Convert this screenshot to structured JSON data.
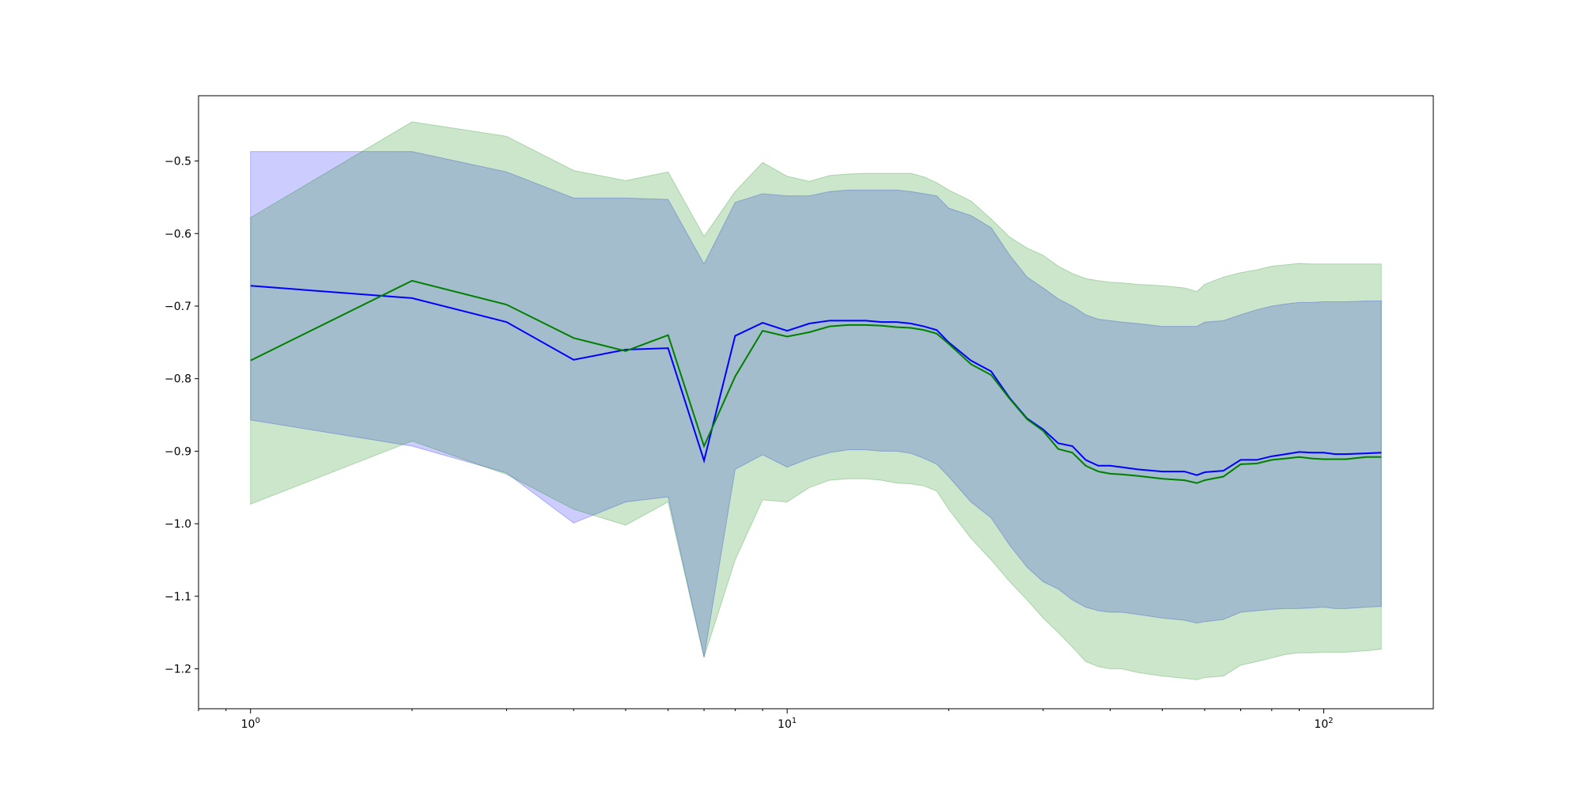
{
  "chart_data": {
    "type": "line",
    "xscale": "log",
    "grid": false,
    "title": "",
    "xlabel": "",
    "ylabel": "",
    "xlim": [
      0.8,
      160
    ],
    "ylim": [
      -1.255,
      -0.41
    ],
    "y_ticks": [
      -0.5,
      -0.6,
      -0.7,
      -0.8,
      -0.9,
      -1.0,
      -1.1,
      -1.2
    ],
    "y_tick_labels": [
      "−0.5",
      "−0.6",
      "−0.7",
      "−0.8",
      "−0.9",
      "−1.0",
      "−1.1",
      "−1.2"
    ],
    "x_major_ticks": [
      1,
      10,
      100
    ],
    "x_tick_labels": [
      {
        "base": "10",
        "exp": "0"
      },
      {
        "base": "10",
        "exp": "1"
      },
      {
        "base": "10",
        "exp": "2"
      }
    ],
    "series": [
      {
        "color": "#0000ff",
        "band_color": "#0000ff",
        "band_opacity": 0.2,
        "x": [
          1,
          2,
          3,
          4,
          5,
          6,
          7,
          8,
          9,
          10,
          11,
          12,
          13,
          14,
          15,
          16,
          17,
          18,
          19,
          20,
          22,
          24,
          26,
          28,
          30,
          32,
          34,
          36,
          38,
          40,
          42,
          45,
          50,
          55,
          58,
          60,
          65,
          70,
          75,
          80,
          85,
          90,
          95,
          100,
          105,
          110,
          120,
          128
        ],
        "y": [
          -0.672,
          -0.689,
          -0.722,
          -0.774,
          -0.76,
          -0.758,
          -0.913,
          -0.741,
          -0.723,
          -0.734,
          -0.724,
          -0.72,
          -0.72,
          -0.72,
          -0.722,
          -0.722,
          -0.724,
          -0.728,
          -0.733,
          -0.75,
          -0.775,
          -0.79,
          -0.827,
          -0.855,
          -0.87,
          -0.889,
          -0.893,
          -0.912,
          -0.92,
          -0.92,
          -0.922,
          -0.925,
          -0.928,
          -0.928,
          -0.933,
          -0.929,
          -0.927,
          -0.912,
          -0.912,
          -0.907,
          -0.904,
          -0.901,
          -0.902,
          -0.902,
          -0.904,
          -0.904,
          -0.903,
          -0.902
        ],
        "upper": [
          -0.487,
          -0.487,
          -0.515,
          -0.551,
          -0.551,
          -0.553,
          -0.642,
          -0.557,
          -0.545,
          -0.548,
          -0.548,
          -0.542,
          -0.54,
          -0.54,
          -0.54,
          -0.54,
          -0.542,
          -0.545,
          -0.548,
          -0.565,
          -0.575,
          -0.592,
          -0.63,
          -0.66,
          -0.675,
          -0.69,
          -0.7,
          -0.712,
          -0.718,
          -0.72,
          -0.722,
          -0.724,
          -0.728,
          -0.728,
          -0.728,
          -0.722,
          -0.72,
          -0.712,
          -0.705,
          -0.7,
          -0.697,
          -0.695,
          -0.695,
          -0.694,
          -0.694,
          -0.694,
          -0.693,
          -0.693
        ],
        "lower": [
          -0.857,
          -0.893,
          -0.93,
          -0.999,
          -0.97,
          -0.963,
          -1.184,
          -0.925,
          -0.905,
          -0.922,
          -0.91,
          -0.902,
          -0.898,
          -0.898,
          -0.9,
          -0.9,
          -0.903,
          -0.91,
          -0.918,
          -0.935,
          -0.97,
          -0.992,
          -1.03,
          -1.06,
          -1.08,
          -1.09,
          -1.105,
          -1.115,
          -1.12,
          -1.122,
          -1.122,
          -1.125,
          -1.13,
          -1.133,
          -1.137,
          -1.135,
          -1.132,
          -1.122,
          -1.12,
          -1.118,
          -1.117,
          -1.117,
          -1.116,
          -1.115,
          -1.117,
          -1.117,
          -1.115,
          -1.114
        ]
      },
      {
        "color": "#008000",
        "band_color": "#008000",
        "band_opacity": 0.2,
        "x": [
          1,
          2,
          3,
          4,
          5,
          6,
          7,
          8,
          9,
          10,
          11,
          12,
          13,
          14,
          15,
          16,
          17,
          18,
          19,
          20,
          22,
          24,
          26,
          28,
          30,
          32,
          34,
          36,
          38,
          40,
          42,
          45,
          50,
          55,
          58,
          60,
          65,
          70,
          75,
          80,
          85,
          90,
          95,
          100,
          105,
          110,
          120,
          128
        ],
        "y": [
          -0.775,
          -0.665,
          -0.698,
          -0.744,
          -0.762,
          -0.74,
          -0.893,
          -0.797,
          -0.734,
          -0.742,
          -0.736,
          -0.728,
          -0.726,
          -0.726,
          -0.727,
          -0.729,
          -0.73,
          -0.733,
          -0.738,
          -0.752,
          -0.78,
          -0.795,
          -0.828,
          -0.856,
          -0.872,
          -0.897,
          -0.902,
          -0.92,
          -0.928,
          -0.931,
          -0.932,
          -0.934,
          -0.938,
          -0.94,
          -0.944,
          -0.94,
          -0.935,
          -0.918,
          -0.917,
          -0.912,
          -0.91,
          -0.908,
          -0.91,
          -0.911,
          -0.911,
          -0.911,
          -0.908,
          -0.908
        ],
        "upper": [
          -0.578,
          -0.446,
          -0.466,
          -0.513,
          -0.527,
          -0.515,
          -0.604,
          -0.542,
          -0.502,
          -0.521,
          -0.528,
          -0.52,
          -0.518,
          -0.517,
          -0.517,
          -0.517,
          -0.517,
          -0.522,
          -0.53,
          -0.54,
          -0.555,
          -0.58,
          -0.605,
          -0.62,
          -0.63,
          -0.645,
          -0.655,
          -0.662,
          -0.665,
          -0.667,
          -0.668,
          -0.67,
          -0.672,
          -0.675,
          -0.68,
          -0.67,
          -0.66,
          -0.654,
          -0.65,
          -0.645,
          -0.643,
          -0.641,
          -0.642,
          -0.642,
          -0.642,
          -0.642,
          -0.642,
          -0.642
        ],
        "lower": [
          -0.973,
          -0.886,
          -0.932,
          -0.98,
          -1.002,
          -0.97,
          -1.184,
          -1.05,
          -0.967,
          -0.97,
          -0.95,
          -0.94,
          -0.938,
          -0.938,
          -0.94,
          -0.944,
          -0.945,
          -0.948,
          -0.955,
          -0.98,
          -1.02,
          -1.05,
          -1.08,
          -1.105,
          -1.13,
          -1.15,
          -1.17,
          -1.19,
          -1.197,
          -1.2,
          -1.2,
          -1.205,
          -1.21,
          -1.213,
          -1.215,
          -1.212,
          -1.21,
          -1.195,
          -1.19,
          -1.185,
          -1.18,
          -1.178,
          -1.178,
          -1.177,
          -1.177,
          -1.177,
          -1.175,
          -1.173
        ]
      }
    ]
  }
}
